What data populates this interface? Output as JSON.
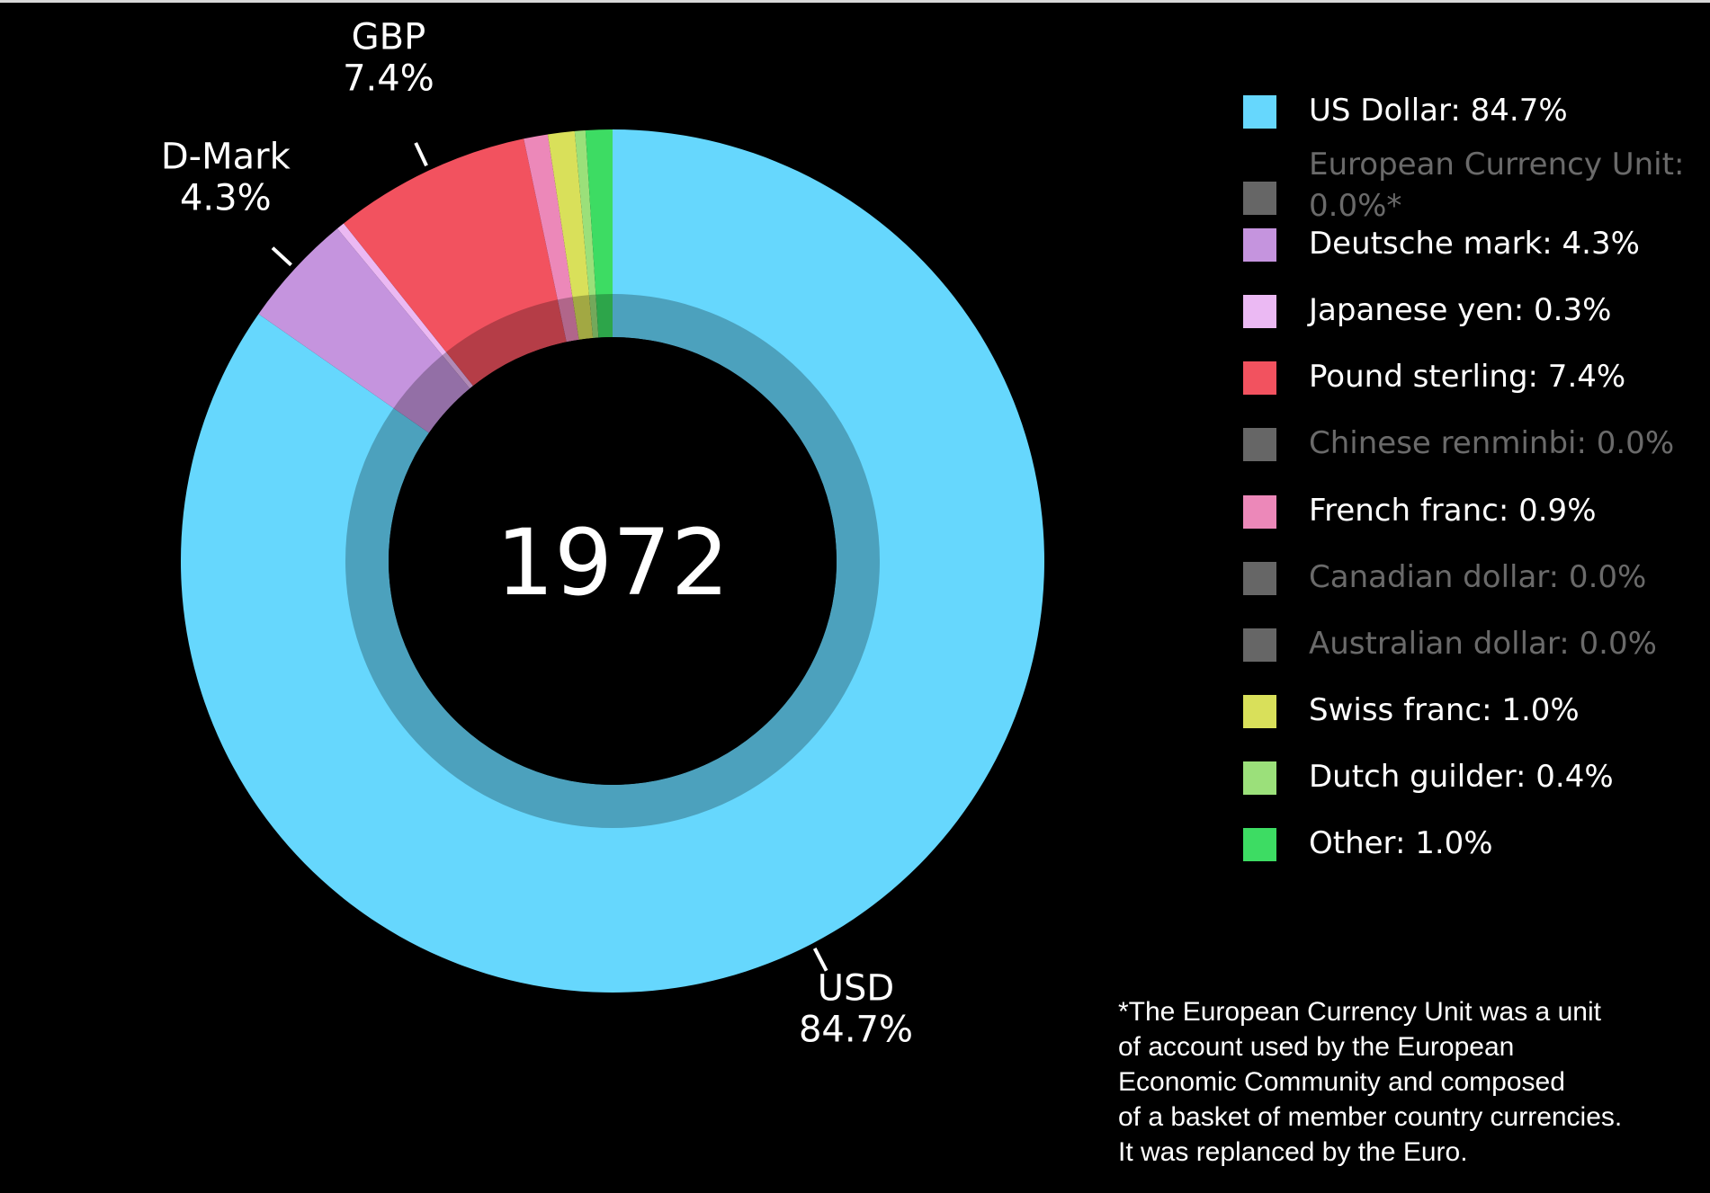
{
  "chart_data": {
    "type": "pie",
    "variant": "donut",
    "center_label": "1972",
    "slices": [
      {
        "name": "US Dollar",
        "legend": "US Dollar: 84.7%",
        "value": 84.7,
        "color": "#66d7fd"
      },
      {
        "name": "European Currency Unit",
        "legend": "European Currency Unit: 0.0%*",
        "value": 0.0,
        "color": "#666666"
      },
      {
        "name": "Deutsche mark",
        "legend": "Deutsche mark: 4.3%",
        "value": 4.3,
        "color": "#c594de"
      },
      {
        "name": "Japanese yen",
        "legend": "Japanese yen: 0.3%",
        "value": 0.3,
        "color": "#ebb9f3"
      },
      {
        "name": "Pound sterling",
        "legend": "Pound sterling: 7.4%",
        "value": 7.4,
        "color": "#f2525f"
      },
      {
        "name": "Chinese renminbi",
        "legend": "Chinese renminbi: 0.0%",
        "value": 0.0,
        "color": "#666666"
      },
      {
        "name": "French franc",
        "legend": "French franc: 0.9%",
        "value": 0.9,
        "color": "#ec88b9"
      },
      {
        "name": "Canadian dollar",
        "legend": "Canadian dollar: 0.0%",
        "value": 0.0,
        "color": "#666666"
      },
      {
        "name": "Australian dollar",
        "legend": "Australian dollar: 0.0%",
        "value": 0.0,
        "color": "#666666"
      },
      {
        "name": "Swiss franc",
        "legend": "Swiss franc: 1.0%",
        "value": 1.0,
        "color": "#d9e05a"
      },
      {
        "name": "Dutch guilder",
        "legend": "Dutch guilder: 0.4%",
        "value": 0.4,
        "color": "#9be07a"
      },
      {
        "name": "Other",
        "legend": "Other: 1.0%",
        "value": 1.0,
        "color": "#3ddc63"
      }
    ],
    "slice_order_clockwise_from_top": [
      "US Dollar",
      "Deutsche mark",
      "Japanese yen",
      "Pound sterling",
      "French franc",
      "Swiss franc",
      "Dutch guilder",
      "Other"
    ],
    "callouts": [
      {
        "slice": "Pound sterling",
        "label": "GBP",
        "value": "7.4%"
      },
      {
        "slice": "Deutsche mark",
        "label": "D-Mark",
        "value": "4.3%"
      },
      {
        "slice": "US Dollar",
        "label": "USD",
        "value": "84.7%"
      }
    ],
    "legend_placement": "right"
  },
  "footnote": [
    "*The European Currency Unit was a unit",
    "of account used by the European",
    "Economic Community and composed",
    "of a basket of member country currencies.",
    "It was replanced by the Euro."
  ]
}
